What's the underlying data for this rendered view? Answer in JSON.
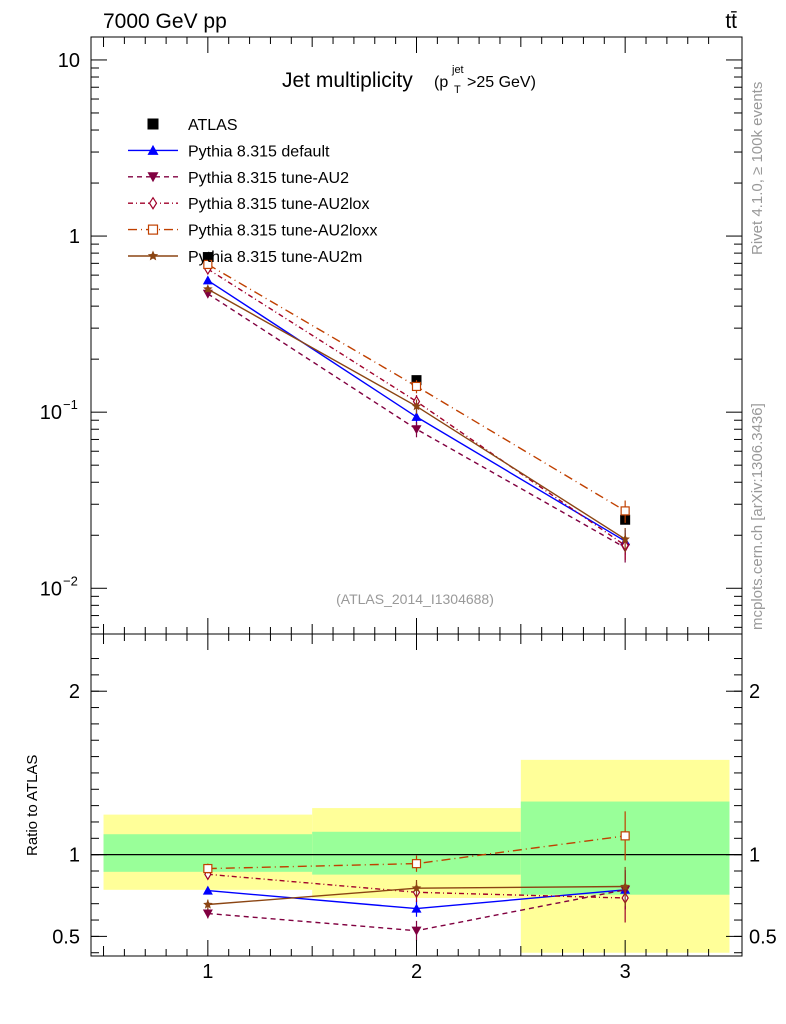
{
  "header": {
    "left": "7000 GeV pp",
    "right": "tt̄"
  },
  "side_labels": {
    "rivet": "Rivet 4.1.0, ≥ 100k events",
    "mcplots": "mcplots.cern.ch [arXiv:1306.3436]"
  },
  "chart_data": {
    "type": "line",
    "title_main": "Jet multiplicity",
    "title_paren_open": "(p",
    "title_sup": "jet",
    "title_sub": "T",
    "title_tail": ">25 GeV)",
    "analysis_label": "(ATLAS_2014_I1304688)",
    "x": [
      1,
      2,
      3
    ],
    "x_ticks": [
      "1",
      "2",
      "3"
    ],
    "xlim": [
      0.44,
      3.56
    ],
    "main": {
      "yscale": "log",
      "ylim": [
        0.0055,
        13.5
      ],
      "y_ticks": [
        {
          "value": 10,
          "base": "10",
          "exp": ""
        },
        {
          "value": 1,
          "base": "1",
          "exp": ""
        },
        {
          "value": 0.1,
          "base": "10",
          "exp": "−1"
        },
        {
          "value": 0.01,
          "base": "10",
          "exp": "−2"
        }
      ]
    },
    "ratio": {
      "ylabel": "Ratio to ATLAS",
      "ylim": [
        0.38,
        2.35
      ],
      "y_ticks": [
        "2",
        "1",
        "0.5"
      ],
      "y_tick_values": [
        2,
        1,
        0.5
      ],
      "bands": [
        {
          "xlo": 0.5,
          "xhi": 1.5,
          "yellow": [
            0.785,
            1.245
          ],
          "green": [
            0.895,
            1.125
          ]
        },
        {
          "xlo": 1.5,
          "xhi": 2.5,
          "yellow": [
            0.735,
            1.285
          ],
          "green": [
            0.878,
            1.14
          ]
        },
        {
          "xlo": 2.5,
          "xhi": 3.5,
          "yellow": [
            0.4,
            1.58
          ],
          "green": [
            0.755,
            1.325
          ]
        }
      ]
    },
    "series": [
      {
        "name": "ATLAS",
        "color": "#000000",
        "marker": "square",
        "dash": "",
        "values": [
          0.76,
          0.152,
          0.0245
        ],
        "errors": [
          0.0,
          0.0,
          0.0
        ],
        "ratio": [
          1.0,
          1.0,
          1.0
        ],
        "ratio_err": [
          0,
          0,
          0
        ]
      },
      {
        "name": "Pythia 8.315 default",
        "color": "#0000ff",
        "marker": "triangle-up",
        "dash": "",
        "values": [
          0.56,
          0.094,
          0.0185
        ],
        "errors": [
          0.02,
          0.01,
          0.003
        ],
        "ratio": [
          0.78,
          0.67,
          0.785
        ],
        "ratio_err": [
          0.02,
          0.05,
          0.12
        ]
      },
      {
        "name": "Pythia 8.315 tune-AU2",
        "color": "#800040",
        "marker": "triangle-down",
        "dash": "5,4",
        "values": [
          0.47,
          0.08,
          0.017
        ],
        "errors": [
          0.02,
          0.008,
          0.003
        ],
        "ratio": [
          0.64,
          0.535,
          0.785
        ],
        "ratio_err": [
          0.03,
          0.06,
          0.12
        ]
      },
      {
        "name": "Pythia 8.315 tune-AU2lox",
        "color": "#a0002a",
        "marker": "diamond-open",
        "dash": "5,3,1,3",
        "values": [
          0.65,
          0.115,
          0.0175
        ],
        "errors": [
          0.02,
          0.01,
          0.003
        ],
        "ratio": [
          0.88,
          0.77,
          0.735
        ],
        "ratio_err": [
          0.03,
          0.06,
          0.15
        ]
      },
      {
        "name": "Pythia 8.315 tune-AU2loxx",
        "color": "#c04000",
        "marker": "square-open",
        "dash": "9,4,1,4",
        "values": [
          0.69,
          0.14,
          0.0275
        ],
        "errors": [
          0.02,
          0.012,
          0.004
        ],
        "ratio": [
          0.915,
          0.945,
          1.115
        ],
        "ratio_err": [
          0.03,
          0.05,
          0.15
        ]
      },
      {
        "name": "Pythia 8.315 tune-AU2m",
        "color": "#8b4513",
        "marker": "star",
        "dash": "",
        "values": [
          0.5,
          0.108,
          0.019
        ],
        "errors": [
          0.02,
          0.01,
          0.003
        ],
        "ratio": [
          0.695,
          0.795,
          0.805
        ],
        "ratio_err": [
          0.03,
          0.05,
          0.12
        ]
      }
    ]
  }
}
